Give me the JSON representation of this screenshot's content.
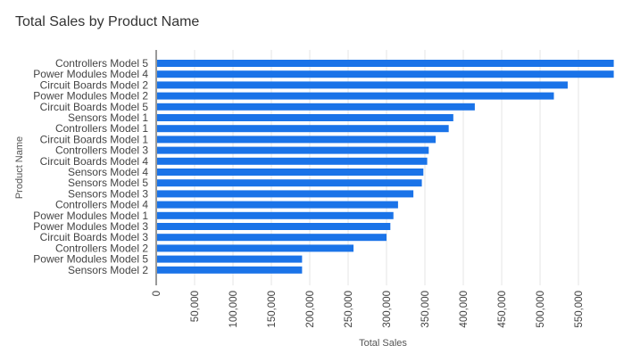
{
  "chart_data": {
    "type": "bar",
    "orientation": "horizontal",
    "title": "Total Sales by Product Name",
    "xlabel": "Total Sales",
    "ylabel": "Product Name",
    "xlim": [
      0,
      600000
    ],
    "x_ticks": [
      0,
      50000,
      100000,
      150000,
      200000,
      250000,
      300000,
      350000,
      400000,
      450000,
      500000,
      550000
    ],
    "x_tick_labels": [
      "0",
      "50,000",
      "100,000",
      "150,000",
      "200,000",
      "250,000",
      "300,000",
      "350,000",
      "400,000",
      "450,000",
      "500,000",
      "550,000"
    ],
    "grid": true,
    "legend": "none",
    "bar_color": "#1a73e8",
    "categories": [
      "Controllers Model 5",
      "Power Modules Model 4",
      "Circuit Boards Model 2",
      "Power Modules Model 2",
      "Circuit Boards Model 5",
      "Sensors Model 1",
      "Controllers Model 1",
      "Circuit Boards Model 1",
      "Controllers Model 3",
      "Circuit Boards Model 4",
      "Sensors Model 4",
      "Sensors Model 5",
      "Sensors Model 3",
      "Controllers Model 4",
      "Power Modules Model 1",
      "Power Modules Model 3",
      "Circuit Boards Model 3",
      "Controllers Model 2",
      "Power Modules Model 5",
      "Sensors Model 2"
    ],
    "values": [
      596000,
      596000,
      536000,
      518000,
      415000,
      387000,
      381000,
      364000,
      355000,
      353000,
      348000,
      346000,
      335000,
      315000,
      309000,
      305000,
      300000,
      257000,
      190000,
      190000
    ]
  }
}
